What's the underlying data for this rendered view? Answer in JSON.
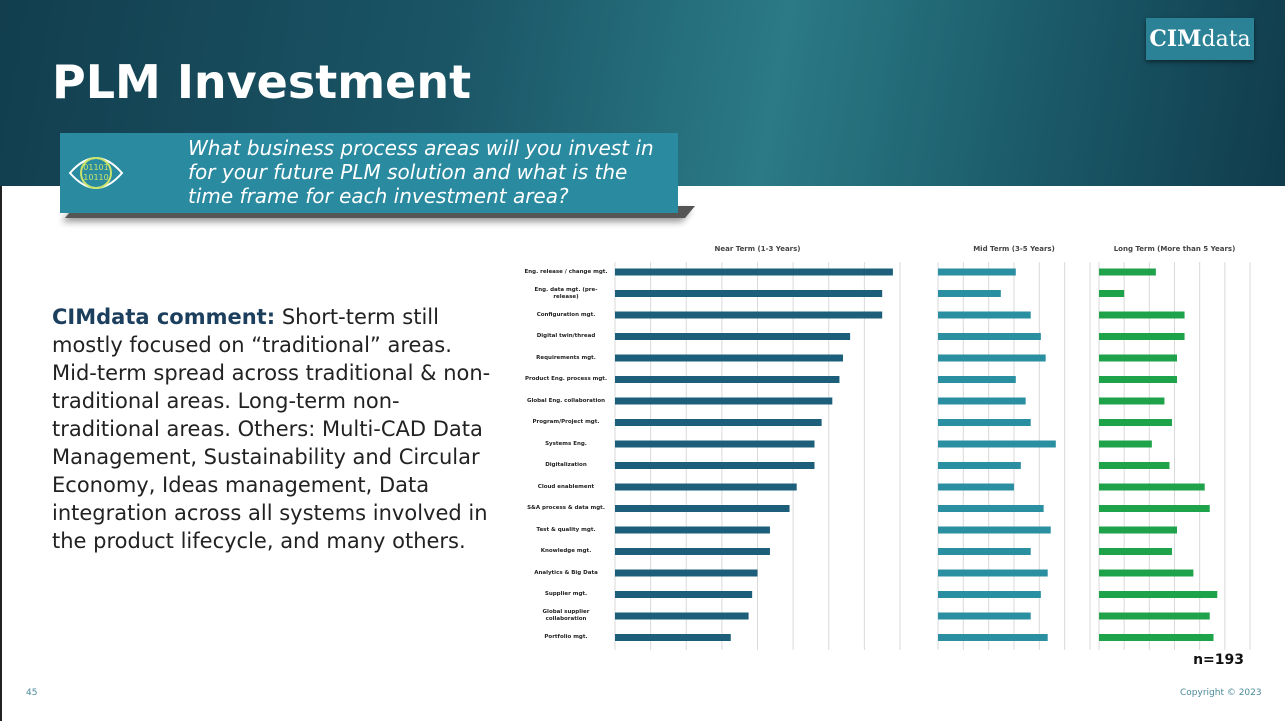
{
  "title": "PLM Investment",
  "logo": {
    "bold": "CIM",
    "rest": "data"
  },
  "icon_text": [
    "01101",
    "10110"
  ],
  "question": "What business process areas will you invest in for your future PLM solution and what is the time frame for each investment area?",
  "comment": {
    "lead": "CIMdata comment:",
    "text": "Short-term still mostly focused on “traditional” areas. Mid-term spread across traditional & non-traditional areas. Long-term non-traditional areas. Others: Multi-CAD Data Management, Sustainability and Circular Economy, Ideas management, Data integration across all systems involved in the product lifecycle, and many others."
  },
  "page_number": "45",
  "copyright": "Copyright © 2023",
  "chart_data": {
    "type": "bar",
    "orientation": "horizontal",
    "grid": true,
    "categories": [
      "Eng. release / change mgt.",
      "Eng. data mgt. (pre-release)",
      "Configuration mgt.",
      "Digital twin/thread",
      "Requirements mgt.",
      "Product Eng. process mgt.",
      "Global Eng. collaboration",
      "Program/Project mgt.",
      "Systems Eng.",
      "Digitalization",
      "Cloud enablement",
      "S&A process & data mgt.",
      "Test & quality mgt.",
      "Knowledge mgt.",
      "Analytics & Big Data",
      "Supplier mgt.",
      "Global supplier collaboration",
      "Portfolio mgt."
    ],
    "series": [
      {
        "name": "Near Term (1-3 Years)",
        "color": "#1d5f7a",
        "xlim": [
          0,
          8
        ],
        "xticks": [
          0,
          1,
          2,
          3,
          4,
          5,
          6,
          7,
          8
        ],
        "values": [
          7.8,
          7.5,
          7.5,
          6.6,
          6.4,
          6.3,
          6.1,
          5.8,
          5.6,
          5.6,
          5.1,
          4.9,
          4.35,
          4.35,
          4.0,
          3.85,
          3.75,
          3.25
        ]
      },
      {
        "name": "Mid Term (3-5 Years)",
        "color": "#2a8fa0",
        "xlim": [
          0,
          6
        ],
        "xticks": [
          0,
          1,
          2,
          3,
          4,
          5,
          6
        ],
        "values": [
          3.07,
          2.48,
          3.66,
          4.06,
          4.25,
          3.07,
          3.46,
          3.66,
          4.65,
          3.27,
          3.0,
          4.17,
          4.45,
          3.66,
          4.33,
          4.06,
          3.66,
          4.33
        ]
      },
      {
        "name": "Long Term (More than 5 Years)",
        "color": "#1fa34a",
        "xlim": [
          0,
          6
        ],
        "xticks": [
          0,
          1,
          2,
          3,
          4,
          5,
          6
        ],
        "values": [
          2.26,
          1.0,
          3.4,
          3.4,
          3.1,
          3.1,
          2.6,
          2.9,
          2.1,
          2.8,
          4.2,
          4.4,
          3.1,
          2.9,
          3.75,
          4.7,
          4.4,
          4.55
        ]
      }
    ],
    "note": "n=193"
  }
}
